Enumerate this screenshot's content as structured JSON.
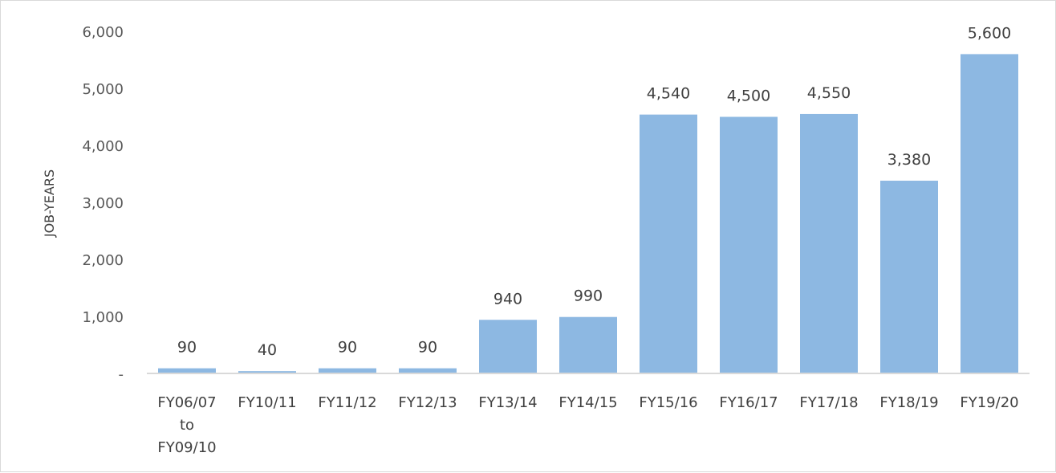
{
  "chart_data": {
    "type": "bar",
    "title": "",
    "xlabel": "",
    "ylabel": "JOB-YEARS",
    "ylim": [
      0,
      6000
    ],
    "yticks": [
      0,
      1000,
      2000,
      3000,
      4000,
      5000,
      6000
    ],
    "ytick_labels": [
      "-",
      "1,000",
      "2,000",
      "3,000",
      "4,000",
      "5,000",
      "6,000"
    ],
    "grid": false,
    "legend": "none",
    "bar_color": "#8db8e2",
    "categories": [
      [
        "FY06/07",
        "to",
        "FY09/10"
      ],
      [
        "FY10/11"
      ],
      [
        "FY11/12"
      ],
      [
        "FY12/13"
      ],
      [
        "FY13/14"
      ],
      [
        "FY14/15"
      ],
      [
        "FY15/16"
      ],
      [
        "FY16/17"
      ],
      [
        "FY17/18"
      ],
      [
        "FY18/19"
      ],
      [
        "FY19/20"
      ]
    ],
    "values": [
      90,
      40,
      90,
      90,
      940,
      990,
      4540,
      4500,
      4550,
      3380,
      5600
    ],
    "value_labels": [
      "90",
      "40",
      "90",
      "90",
      "940",
      "990",
      "4,540",
      "4,500",
      "4,550",
      "3,380",
      "5,600"
    ]
  }
}
